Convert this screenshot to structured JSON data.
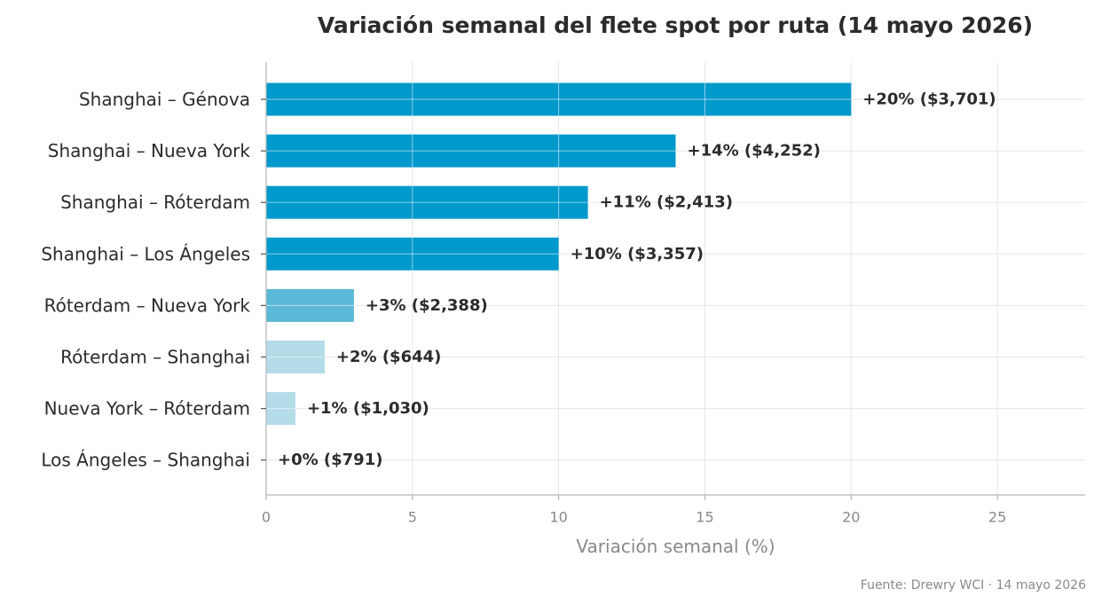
{
  "chart_data": {
    "type": "bar",
    "orientation": "horizontal",
    "title": "Variación semanal del flete spot por ruta (14 mayo 2026)",
    "xlabel": "Variación semanal (%)",
    "ylabel": "",
    "xlim": [
      0,
      28
    ],
    "xticks": [
      0,
      5,
      10,
      15,
      20,
      25
    ],
    "grid": true,
    "categories": [
      "Shanghai – Génova",
      "Shanghai – Nueva York",
      "Shanghai – Róterdam",
      "Shanghai – Los Ángeles",
      "Róterdam – Nueva York",
      "Róterdam – Shanghai",
      "Nueva York – Róterdam",
      "Los Ángeles – Shanghai"
    ],
    "values": [
      20,
      14,
      11,
      10,
      3,
      2,
      1,
      0
    ],
    "data_labels": [
      "+20%  ($3,701)",
      "+14%  ($4,252)",
      "+11%  ($2,413)",
      "+10%  ($3,357)",
      "+3%  ($2,388)",
      "+2%  ($644)",
      "+1%  ($1,030)",
      "+0%  ($791)"
    ],
    "bar_colors": [
      "#0099cc",
      "#0099cc",
      "#0099cc",
      "#0099cc",
      "#5bb8d6",
      "#b3dbe8",
      "#b3dbe8",
      "#b3dbe8"
    ]
  },
  "source_note": "Fuente: Drewry WCI · 14 mayo 2026"
}
